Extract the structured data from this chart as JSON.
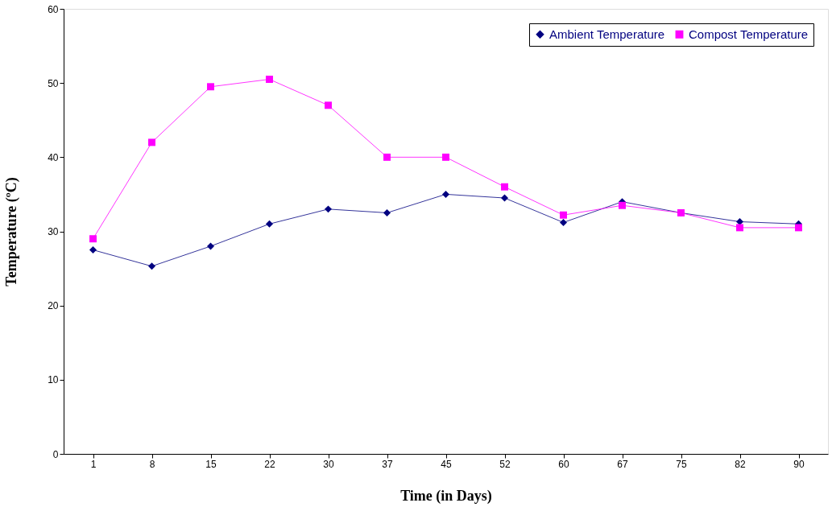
{
  "chart_data": {
    "type": "line",
    "xlabel": "Time (in Days)",
    "ylabel": "Temperature (ºC)",
    "categories": [
      "1",
      "8",
      "15",
      "22",
      "30",
      "37",
      "45",
      "52",
      "60",
      "67",
      "75",
      "82",
      "90"
    ],
    "series": [
      {
        "name": "Ambient Temperature",
        "color": "#000080",
        "marker": "diamond",
        "values": [
          27.5,
          25.3,
          28,
          31,
          33,
          32.5,
          35,
          34.5,
          31.2,
          34,
          32.5,
          31.3,
          31
        ]
      },
      {
        "name": "Compost Temperature",
        "color": "#ff00ff",
        "marker": "square",
        "values": [
          29,
          42,
          49.5,
          50.5,
          47,
          40,
          40,
          36,
          32.2,
          33.5,
          32.5,
          30.5,
          30.5
        ]
      }
    ],
    "ylim": [
      0,
      60
    ],
    "yticks": [
      0,
      10,
      20,
      30,
      40,
      50,
      60
    ],
    "grid": false,
    "legend": "top right",
    "line_style": "solid"
  }
}
